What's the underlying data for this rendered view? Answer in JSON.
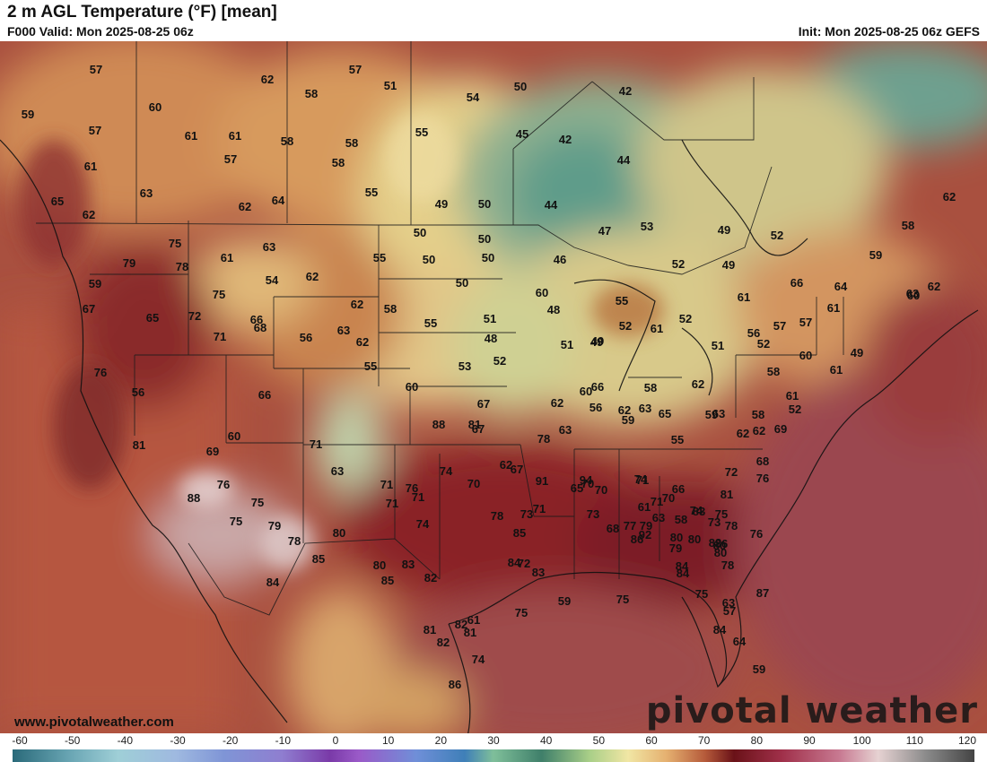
{
  "header": {
    "title": "2 m AGL Temperature (°F) [mean]",
    "valid": "F000 Valid: Mon 2025-08-25 06z",
    "init": "Init: Mon 2025-08-25 06z GEFS"
  },
  "map": {
    "region": "CONUS / North America",
    "variable": "2 m AGL Temperature",
    "units": "°F",
    "point_labels": [
      "57",
      "57",
      "62",
      "51",
      "54",
      "50",
      "58",
      "60",
      "59",
      "57",
      "61",
      "61",
      "58",
      "55",
      "45",
      "42",
      "61",
      "57",
      "58",
      "42",
      "63",
      "58",
      "64",
      "62",
      "55",
      "49",
      "50",
      "44",
      "44",
      "47",
      "53",
      "65",
      "62",
      "75",
      "63",
      "50",
      "50",
      "55",
      "50",
      "50",
      "49",
      "52",
      "59",
      "79",
      "78",
      "61",
      "54",
      "62",
      "50",
      "46",
      "52",
      "49",
      "62",
      "59",
      "75",
      "62",
      "63",
      "65",
      "58",
      "60",
      "72",
      "56",
      "63",
      "58",
      "67",
      "66",
      "71",
      "55",
      "48",
      "61",
      "55",
      "51",
      "61",
      "60",
      "68",
      "62",
      "55",
      "49",
      "52",
      "61",
      "52",
      "56",
      "62",
      "66",
      "64",
      "57",
      "57",
      "49",
      "51",
      "49",
      "51",
      "52",
      "58",
      "60",
      "61",
      "48",
      "52",
      "53",
      "60",
      "58",
      "62",
      "76",
      "56",
      "60",
      "66",
      "63",
      "62",
      "67",
      "62",
      "55",
      "65",
      "67",
      "63",
      "58",
      "52",
      "61",
      "62",
      "62",
      "59",
      "56",
      "63",
      "69",
      "59",
      "71",
      "81",
      "78",
      "62",
      "81",
      "88",
      "76",
      "60",
      "66",
      "69",
      "67",
      "70",
      "74",
      "74",
      "71",
      "68",
      "66",
      "65",
      "73",
      "71",
      "70",
      "63",
      "70",
      "71",
      "71",
      "72",
      "76",
      "71",
      "61",
      "63",
      "58",
      "76",
      "81",
      "74",
      "75",
      "78",
      "79",
      "92",
      "94",
      "91",
      "85",
      "71",
      "74",
      "78",
      "80",
      "80",
      "83",
      "76",
      "75",
      "88",
      "79",
      "77",
      "70",
      "86",
      "73",
      "68",
      "73",
      "82",
      "80",
      "75",
      "80",
      "78",
      "85",
      "84",
      "85",
      "80",
      "84",
      "86",
      "78",
      "83",
      "79",
      "82",
      "83",
      "80",
      "84",
      "84",
      "75",
      "63",
      "87",
      "82",
      "81",
      "81",
      "61",
      "86",
      "74",
      "82",
      "75",
      "75",
      "59",
      "64",
      "59",
      "72",
      "57",
      "84"
    ]
  },
  "colorbar": {
    "ticks": [
      "-60",
      "-50",
      "-40",
      "-30",
      "-20",
      "-10",
      "0",
      "10",
      "20",
      "30",
      "40",
      "50",
      "60",
      "70",
      "80",
      "90",
      "100",
      "110",
      "120"
    ],
    "range": [
      -60,
      120
    ]
  },
  "watermark": {
    "brand": "pivotal weather",
    "url": "www.pivotalweather.com"
  }
}
